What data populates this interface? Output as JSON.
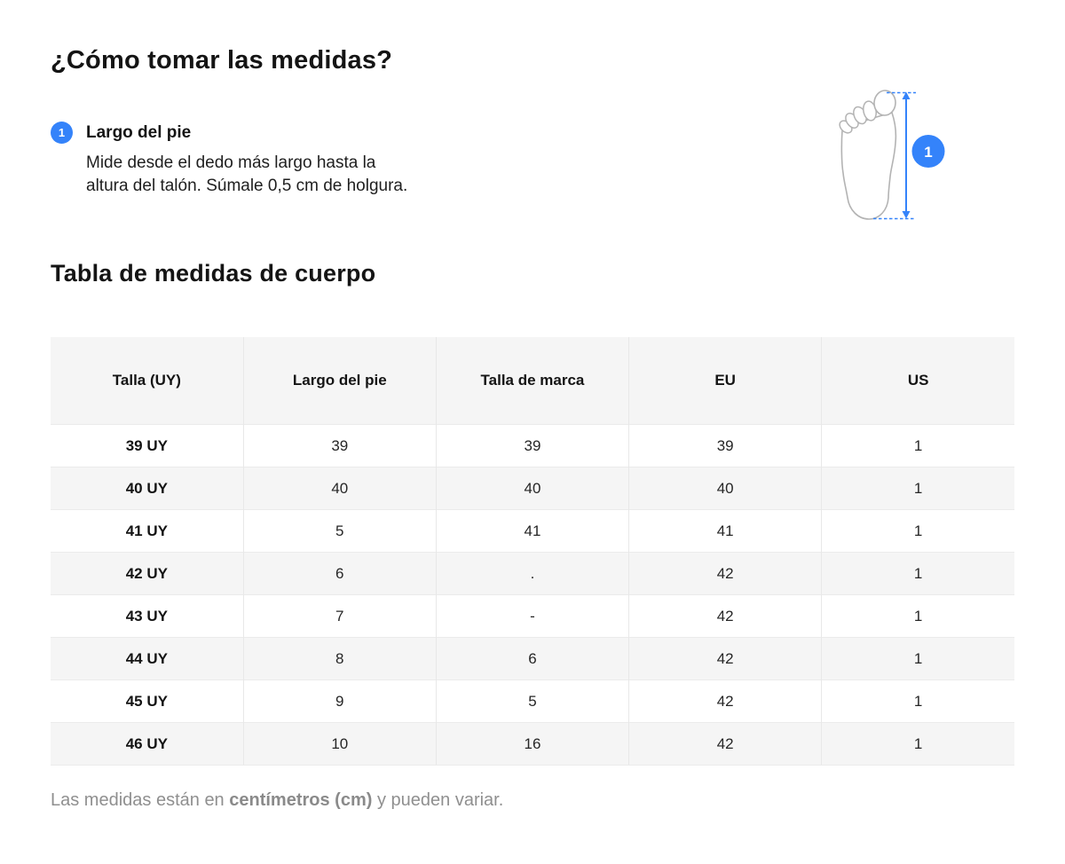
{
  "header": {
    "title": "¿Cómo tomar las medidas?"
  },
  "step": {
    "number": "1",
    "label": "Largo del pie",
    "description_lines": [
      "Mide desde el dedo más largo hasta la",
      "altura del talón. Súmale 0,5 cm de holgura."
    ]
  },
  "diagram": {
    "badge_number": "1"
  },
  "table": {
    "title": "Tabla de medidas de cuerpo",
    "columns": [
      "Talla (UY)",
      "Largo del pie",
      "Talla de marca",
      "EU",
      "US"
    ],
    "rows": [
      [
        "39 UY",
        "39",
        "39",
        "39",
        "1"
      ],
      [
        "40 UY",
        "40",
        "40",
        "40",
        "1"
      ],
      [
        "41 UY",
        "5",
        "41",
        "41",
        "1"
      ],
      [
        "42 UY",
        "6",
        ".",
        "42",
        "1"
      ],
      [
        "43 UY",
        "7",
        "-",
        "42",
        "1"
      ],
      [
        "44 UY",
        "8",
        "6",
        "42",
        "1"
      ],
      [
        "45 UY",
        "9",
        "5",
        "42",
        "1"
      ],
      [
        "46 UY",
        "10",
        "16",
        "42",
        "1"
      ]
    ]
  },
  "footnote": {
    "prefix": "Las medidas están en ",
    "bold": "centímetros (cm)",
    "suffix": " y pueden variar."
  },
  "colors": {
    "accent_blue": "#3483FA",
    "table_header_bg": "#f5f5f5",
    "row_stripe_bg": "#f5f5f5",
    "table_border": "#e8e8e8",
    "muted_text": "#8f8f8f",
    "text": "#1a1a1a",
    "foot_outline": "#b3b3b3"
  }
}
